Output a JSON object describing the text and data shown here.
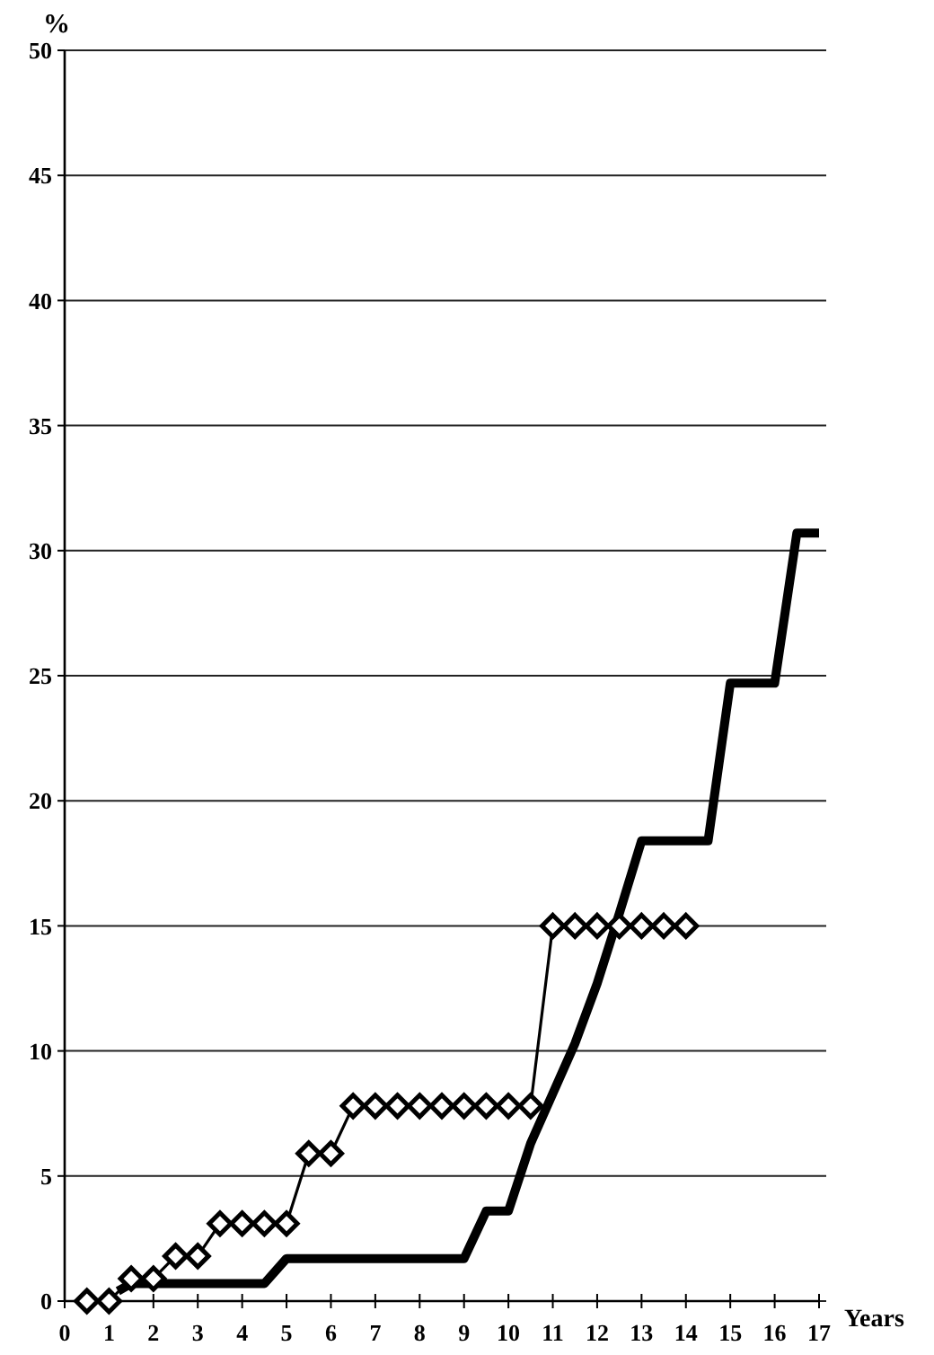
{
  "chart_data": {
    "type": "line",
    "xlabel": "Years",
    "ylabel": "%",
    "xlim": [
      0,
      17
    ],
    "xticks": [
      0,
      1,
      2,
      3,
      4,
      5,
      6,
      7,
      8,
      9,
      10,
      11,
      12,
      13,
      14,
      15,
      16,
      17
    ],
    "ylim": [
      0,
      50
    ],
    "yticks": [
      0,
      5,
      10,
      15,
      20,
      25,
      30,
      35,
      40,
      45,
      50
    ],
    "grid": "y",
    "series": [
      {
        "color": "#000000",
        "marker": "none",
        "x": [
          1.2,
          1.5,
          4.5,
          5,
          9,
          9.5,
          10,
          10.5,
          11,
          11.5,
          12,
          12.5,
          13,
          14.5,
          15,
          16,
          16.5,
          17
        ],
        "values": [
          0.4,
          0.7,
          0.7,
          1.7,
          1.7,
          3.6,
          3.6,
          6.3,
          8.3,
          10.3,
          12.7,
          15.5,
          18.4,
          18.4,
          24.7,
          24.7,
          30.7,
          30.7
        ]
      },
      {
        "color": "#000000",
        "marker": "diamond",
        "x": [
          0.5,
          1,
          1.5,
          2,
          2.5,
          3,
          3.5,
          4,
          4.5,
          5,
          5.5,
          6,
          6.5,
          7,
          7.5,
          8,
          8.5,
          9,
          9.5,
          10,
          10.5,
          11,
          11.5,
          12,
          12.5,
          13,
          13.5,
          14
        ],
        "values": [
          0,
          0,
          0.9,
          0.9,
          1.8,
          1.8,
          3.1,
          3.1,
          3.1,
          3.1,
          5.9,
          5.9,
          7.8,
          7.8,
          7.8,
          7.8,
          7.8,
          7.8,
          7.8,
          7.8,
          7.8,
          15,
          15,
          15,
          15,
          15,
          15,
          15
        ]
      }
    ]
  }
}
